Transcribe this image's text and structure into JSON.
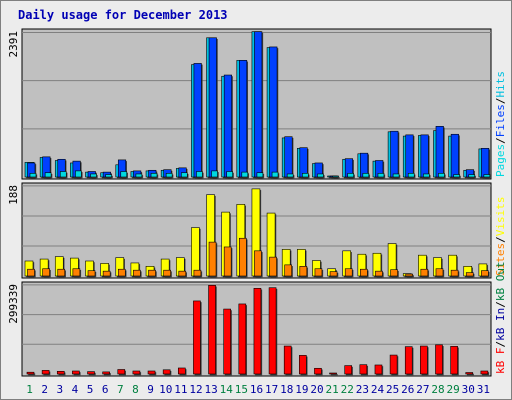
{
  "title": "Daily usage for December 2013",
  "colors": {
    "background": "#ececec",
    "plot_bg": "#c0c0c0",
    "title": "#0000b4",
    "hits": "#00c0e0",
    "files": "#0040ff",
    "pages": "#00d8e0",
    "visits": "#ffff00",
    "sites": "#ff8000",
    "kbin": "#0000a0",
    "kbout": "#008040",
    "kbf": "#ff0000",
    "weekend": "#008040",
    "weekday": "#0000a0"
  },
  "chart_data": [
    {
      "type": "bar",
      "panel": "hits-files-pages",
      "ylabel_parts": [
        "Pages",
        "/",
        "Files",
        "/",
        "Hits"
      ],
      "ymax_label": "2391",
      "ylim": [
        0,
        2391
      ],
      "categories": [
        "1",
        "2",
        "3",
        "4",
        "5",
        "6",
        "7",
        "8",
        "9",
        "10",
        "11",
        "12",
        "13",
        "14",
        "15",
        "16",
        "17",
        "18",
        "19",
        "20",
        "21",
        "22",
        "23",
        "24",
        "25",
        "26",
        "27",
        "28",
        "29",
        "30",
        "31"
      ],
      "series": [
        {
          "name": "Hits",
          "values": [
            240,
            320,
            270,
            230,
            80,
            70,
            200,
            90,
            100,
            110,
            140,
            1840,
            2280,
            1650,
            1910,
            2380,
            2120,
            640,
            470,
            220,
            10,
            290,
            380,
            260,
            740,
            670,
            680,
            760,
            670,
            110,
            460
          ]
        },
        {
          "name": "Files",
          "values": [
            230,
            330,
            290,
            260,
            90,
            80,
            280,
            100,
            110,
            120,
            150,
            1860,
            2280,
            1670,
            1910,
            2380,
            2130,
            660,
            480,
            230,
            10,
            300,
            390,
            270,
            750,
            690,
            690,
            830,
            700,
            120,
            470
          ]
        },
        {
          "name": "Pages",
          "values": [
            60,
            70,
            90,
            100,
            50,
            40,
            90,
            50,
            60,
            60,
            70,
            90,
            100,
            90,
            80,
            70,
            80,
            50,
            60,
            50,
            10,
            60,
            60,
            60,
            50,
            60,
            50,
            60,
            40,
            40,
            40
          ]
        }
      ]
    },
    {
      "type": "bar",
      "panel": "sites-visits",
      "ylabel_parts": [
        "Sites",
        "/",
        "Visits"
      ],
      "ymax_label": "188",
      "ylim": [
        0,
        188
      ],
      "categories": [
        "1",
        "2",
        "3",
        "4",
        "5",
        "6",
        "7",
        "8",
        "9",
        "10",
        "11",
        "12",
        "13",
        "14",
        "15",
        "16",
        "17",
        "18",
        "19",
        "20",
        "21",
        "22",
        "23",
        "24",
        "25",
        "26",
        "27",
        "28",
        "29",
        "30",
        "31"
      ],
      "series": [
        {
          "name": "Visits",
          "values": [
            31,
            35,
            40,
            37,
            31,
            26,
            38,
            27,
            20,
            35,
            38,
            100,
            168,
            132,
            148,
            180,
            130,
            55,
            55,
            32,
            15,
            52,
            45,
            47,
            67,
            5,
            43,
            38,
            43,
            20,
            25
          ]
        },
        {
          "name": "Sites",
          "values": [
            14,
            15,
            14,
            15,
            11,
            10,
            14,
            12,
            12,
            12,
            10,
            12,
            70,
            60,
            78,
            52,
            39,
            23,
            20,
            15,
            9,
            15,
            14,
            10,
            13,
            4,
            14,
            15,
            12,
            7,
            11
          ]
        }
      ]
    },
    {
      "type": "bar",
      "panel": "kbytes",
      "ylabel_parts": [
        "kB F",
        "/",
        "kB In",
        "/",
        "kB Out"
      ],
      "ymax_label": "299339",
      "ylim": [
        0,
        299339
      ],
      "categories": [
        "1",
        "2",
        "3",
        "4",
        "5",
        "6",
        "7",
        "8",
        "9",
        "10",
        "11",
        "12",
        "13",
        "14",
        "15",
        "16",
        "17",
        "18",
        "19",
        "20",
        "21",
        "22",
        "23",
        "24",
        "25",
        "26",
        "27",
        "28",
        "29",
        "30",
        "31"
      ],
      "series": [
        {
          "name": "kB F",
          "values": [
            6000,
            12000,
            9000,
            10000,
            8000,
            7000,
            15000,
            10000,
            10000,
            14000,
            20000,
            243000,
            295000,
            216000,
            233000,
            285000,
            287000,
            93000,
            62000,
            19000,
            2000,
            28000,
            31000,
            30000,
            63000,
            91000,
            93000,
            97000,
            92000,
            5000,
            10000
          ]
        }
      ]
    }
  ],
  "weekend_days": [
    1,
    7,
    8,
    14,
    15,
    21,
    22,
    28,
    29
  ]
}
